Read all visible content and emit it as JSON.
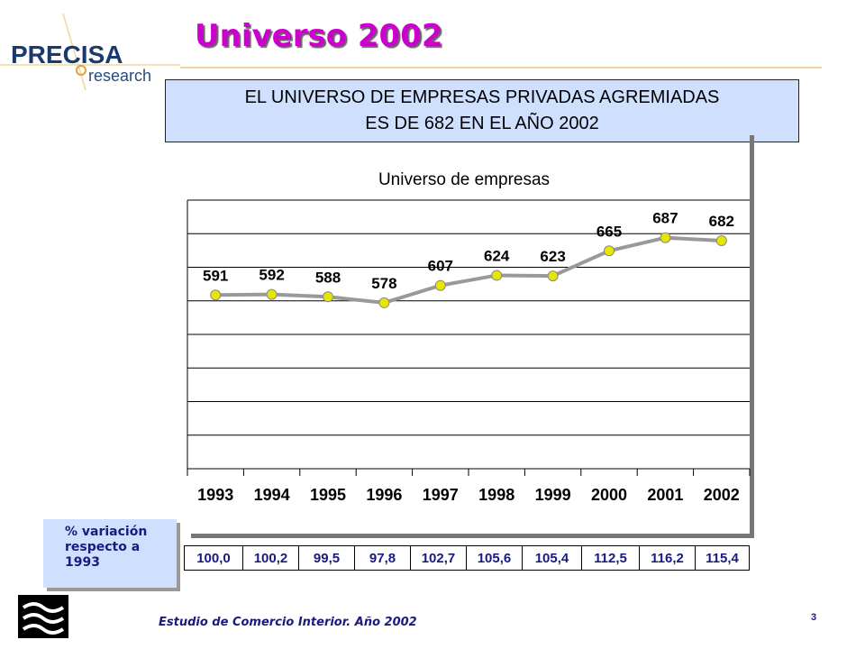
{
  "logo": {
    "brand": "PRECISA",
    "sub": "research"
  },
  "title": "Universo 2002",
  "headline": {
    "line1": "EL UNIVERSO DE EMPRESAS PRIVADAS AGREMIADAS",
    "line2": "ES DE 682 EN EL AÑO 2002"
  },
  "chart_data": {
    "type": "line",
    "title": "Universo de empresas",
    "categories": [
      "1993",
      "1994",
      "1995",
      "1996",
      "1997",
      "1998",
      "1999",
      "2000",
      "2001",
      "2002"
    ],
    "values": [
      591,
      592,
      588,
      578,
      607,
      624,
      623,
      665,
      687,
      682
    ],
    "ylim": [
      300,
      750
    ],
    "grid": true,
    "legend": "none",
    "colors": {
      "line": "#999999",
      "marker": "#e6e600"
    }
  },
  "variation": {
    "label_lines": [
      "% variación",
      "respecto a",
      "1993"
    ],
    "values": [
      "100,0",
      "100,2",
      "99,5",
      "97,8",
      "102,7",
      "105,6",
      "105,4",
      "112,5",
      "116,2",
      "115,4"
    ]
  },
  "footer": "Estudio de Comercio Interior. Año 2002",
  "page_number": "3"
}
